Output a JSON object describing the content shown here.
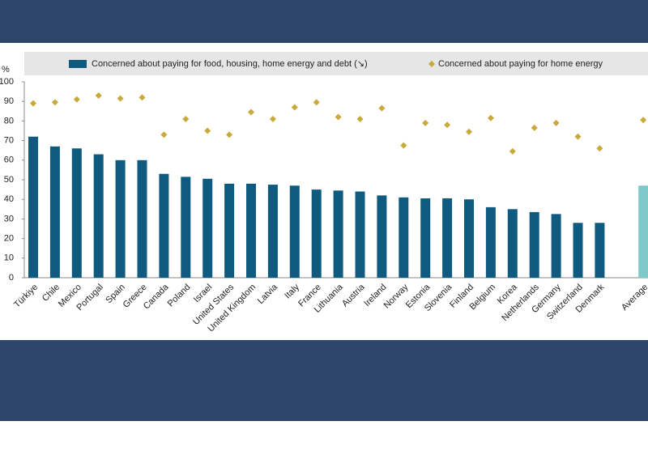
{
  "chart_data": {
    "type": "bar",
    "y_label": "%",
    "categories": [
      "Türkiye",
      "Chile",
      "Mexico",
      "Portugal",
      "Spain",
      "Greece",
      "Canada",
      "Poland",
      "Israel",
      "United States",
      "United Kingdom",
      "Latvia",
      "Italy",
      "France",
      "Lithuania",
      "Austria",
      "Ireland",
      "Norway",
      "Estonia",
      "Slovenia",
      "Finland",
      "Belgium",
      "Korea",
      "Netherlands",
      "Germany",
      "Switzerland",
      "Denmark",
      null,
      "Average"
    ],
    "series": [
      {
        "name": "Concerned about paying for food, housing, home energy and debt (↘)",
        "type": "bar",
        "color": "#0f5b80",
        "colors": [
          "#0f5b80",
          "#0f5b80",
          "#0f5b80",
          "#0f5b80",
          "#0f5b80",
          "#0f5b80",
          "#0f5b80",
          "#0f5b80",
          "#0f5b80",
          "#0f5b80",
          "#0f5b80",
          "#0f5b80",
          "#0f5b80",
          "#0f5b80",
          "#0f5b80",
          "#0f5b80",
          "#0f5b80",
          "#0f5b80",
          "#0f5b80",
          "#0f5b80",
          "#0f5b80",
          "#0f5b80",
          "#0f5b80",
          "#0f5b80",
          "#0f5b80",
          "#0f5b80",
          "#0f5b80",
          "#0f5b80",
          "#7ec9c9"
        ],
        "values": [
          72,
          67,
          66,
          63,
          60,
          60,
          53,
          51.5,
          50.5,
          48,
          48,
          47.5,
          47,
          45,
          44.5,
          44,
          42,
          41,
          40.5,
          40.5,
          40,
          36,
          35,
          33.5,
          32.5,
          28,
          28,
          null,
          47
        ]
      },
      {
        "name": "Concerned about paying for home energy",
        "type": "marker",
        "color": "#c9a93b",
        "values": [
          89,
          89.5,
          91,
          93,
          91.5,
          92,
          73,
          81,
          75,
          73,
          84.5,
          81,
          87,
          89.5,
          82,
          81,
          86.5,
          67.5,
          79,
          78,
          74.5,
          81.5,
          64.5,
          76.5,
          79,
          72,
          66,
          null,
          80.5
        ]
      }
    ],
    "ylim": [
      0,
      100
    ],
    "yticks": [
      0,
      10,
      20,
      30,
      40,
      50,
      60,
      70,
      80,
      90,
      100
    ],
    "grid": false
  }
}
